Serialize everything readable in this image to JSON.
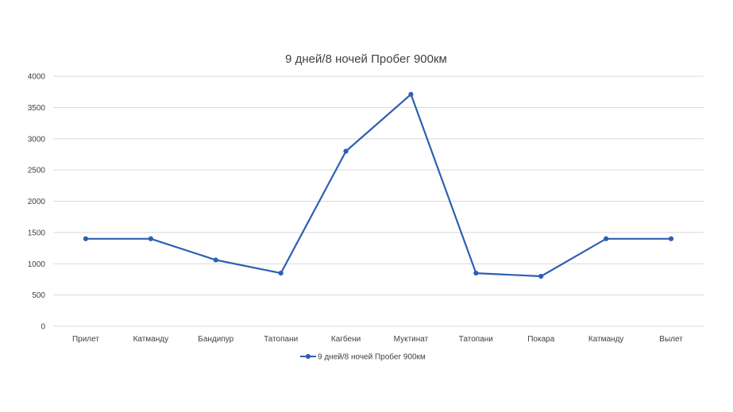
{
  "chart_data": {
    "type": "line",
    "title": "9 дней/8 ночей  Пробег 900км",
    "xlabel": "",
    "ylabel": "",
    "categories": [
      "Прилет",
      "Катманду",
      "Бандипур",
      "Татопани",
      "Кагбени",
      "Муктинат",
      "Татопани",
      "Покара",
      "Катманду",
      "Вылет"
    ],
    "series": [
      {
        "name": "9 дней/8 ночей  Пробег 900км",
        "values": [
          1400,
          1400,
          1060,
          850,
          2800,
          3710,
          850,
          800,
          1400,
          1400
        ],
        "color": "#2f5fb3"
      }
    ],
    "ylim": [
      0,
      4000
    ],
    "yticks": [
      0,
      500,
      1000,
      1500,
      2000,
      2500,
      3000,
      3500,
      4000
    ],
    "grid": true,
    "legend": "bottom",
    "colors": {
      "line": "#2f5fb3",
      "grid": "#d9d9d9",
      "text": "#404040"
    }
  }
}
